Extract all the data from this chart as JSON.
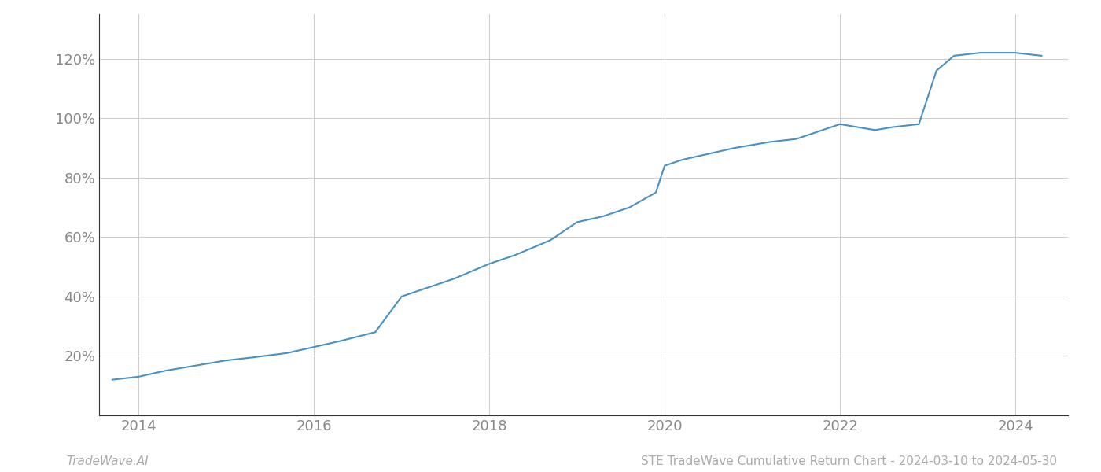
{
  "x_years": [
    2013.7,
    2014.0,
    2014.3,
    2014.7,
    2015.0,
    2015.3,
    2015.7,
    2016.0,
    2016.3,
    2016.7,
    2017.0,
    2017.3,
    2017.6,
    2018.0,
    2018.3,
    2018.7,
    2019.0,
    2019.3,
    2019.6,
    2019.9,
    2020.0,
    2020.2,
    2020.5,
    2020.8,
    2021.0,
    2021.2,
    2021.5,
    2021.7,
    2022.0,
    2022.2,
    2022.4,
    2022.6,
    2022.9,
    2023.1,
    2023.3,
    2023.6,
    2024.0,
    2024.3
  ],
  "y_values": [
    12,
    13,
    15,
    17,
    18.5,
    19.5,
    21,
    23,
    25,
    28,
    40,
    43,
    46,
    51,
    54,
    59,
    65,
    67,
    70,
    75,
    84,
    86,
    88,
    90,
    91,
    92,
    93,
    95,
    98,
    97,
    96,
    97,
    98,
    116,
    121,
    122,
    122,
    121
  ],
  "line_color": "#4a90c4",
  "line_width": 1.5,
  "background_color": "#ffffff",
  "grid_color": "#cccccc",
  "ytick_labels": [
    "20%",
    "40%",
    "60%",
    "80%",
    "100%",
    "120%"
  ],
  "ytick_values": [
    20,
    40,
    60,
    80,
    100,
    120
  ],
  "xtick_labels": [
    "2014",
    "2016",
    "2018",
    "2020",
    "2022",
    "2024"
  ],
  "xtick_values": [
    2014,
    2016,
    2018,
    2020,
    2022,
    2024
  ],
  "xlim": [
    2013.55,
    2024.6
  ],
  "ylim": [
    0,
    135
  ],
  "footer_left": "TradeWave.AI",
  "footer_right": "STE TradeWave Cumulative Return Chart - 2024-03-10 to 2024-05-30",
  "label_color": "#888888",
  "footer_color": "#aaaaaa",
  "spine_color": "#333333"
}
